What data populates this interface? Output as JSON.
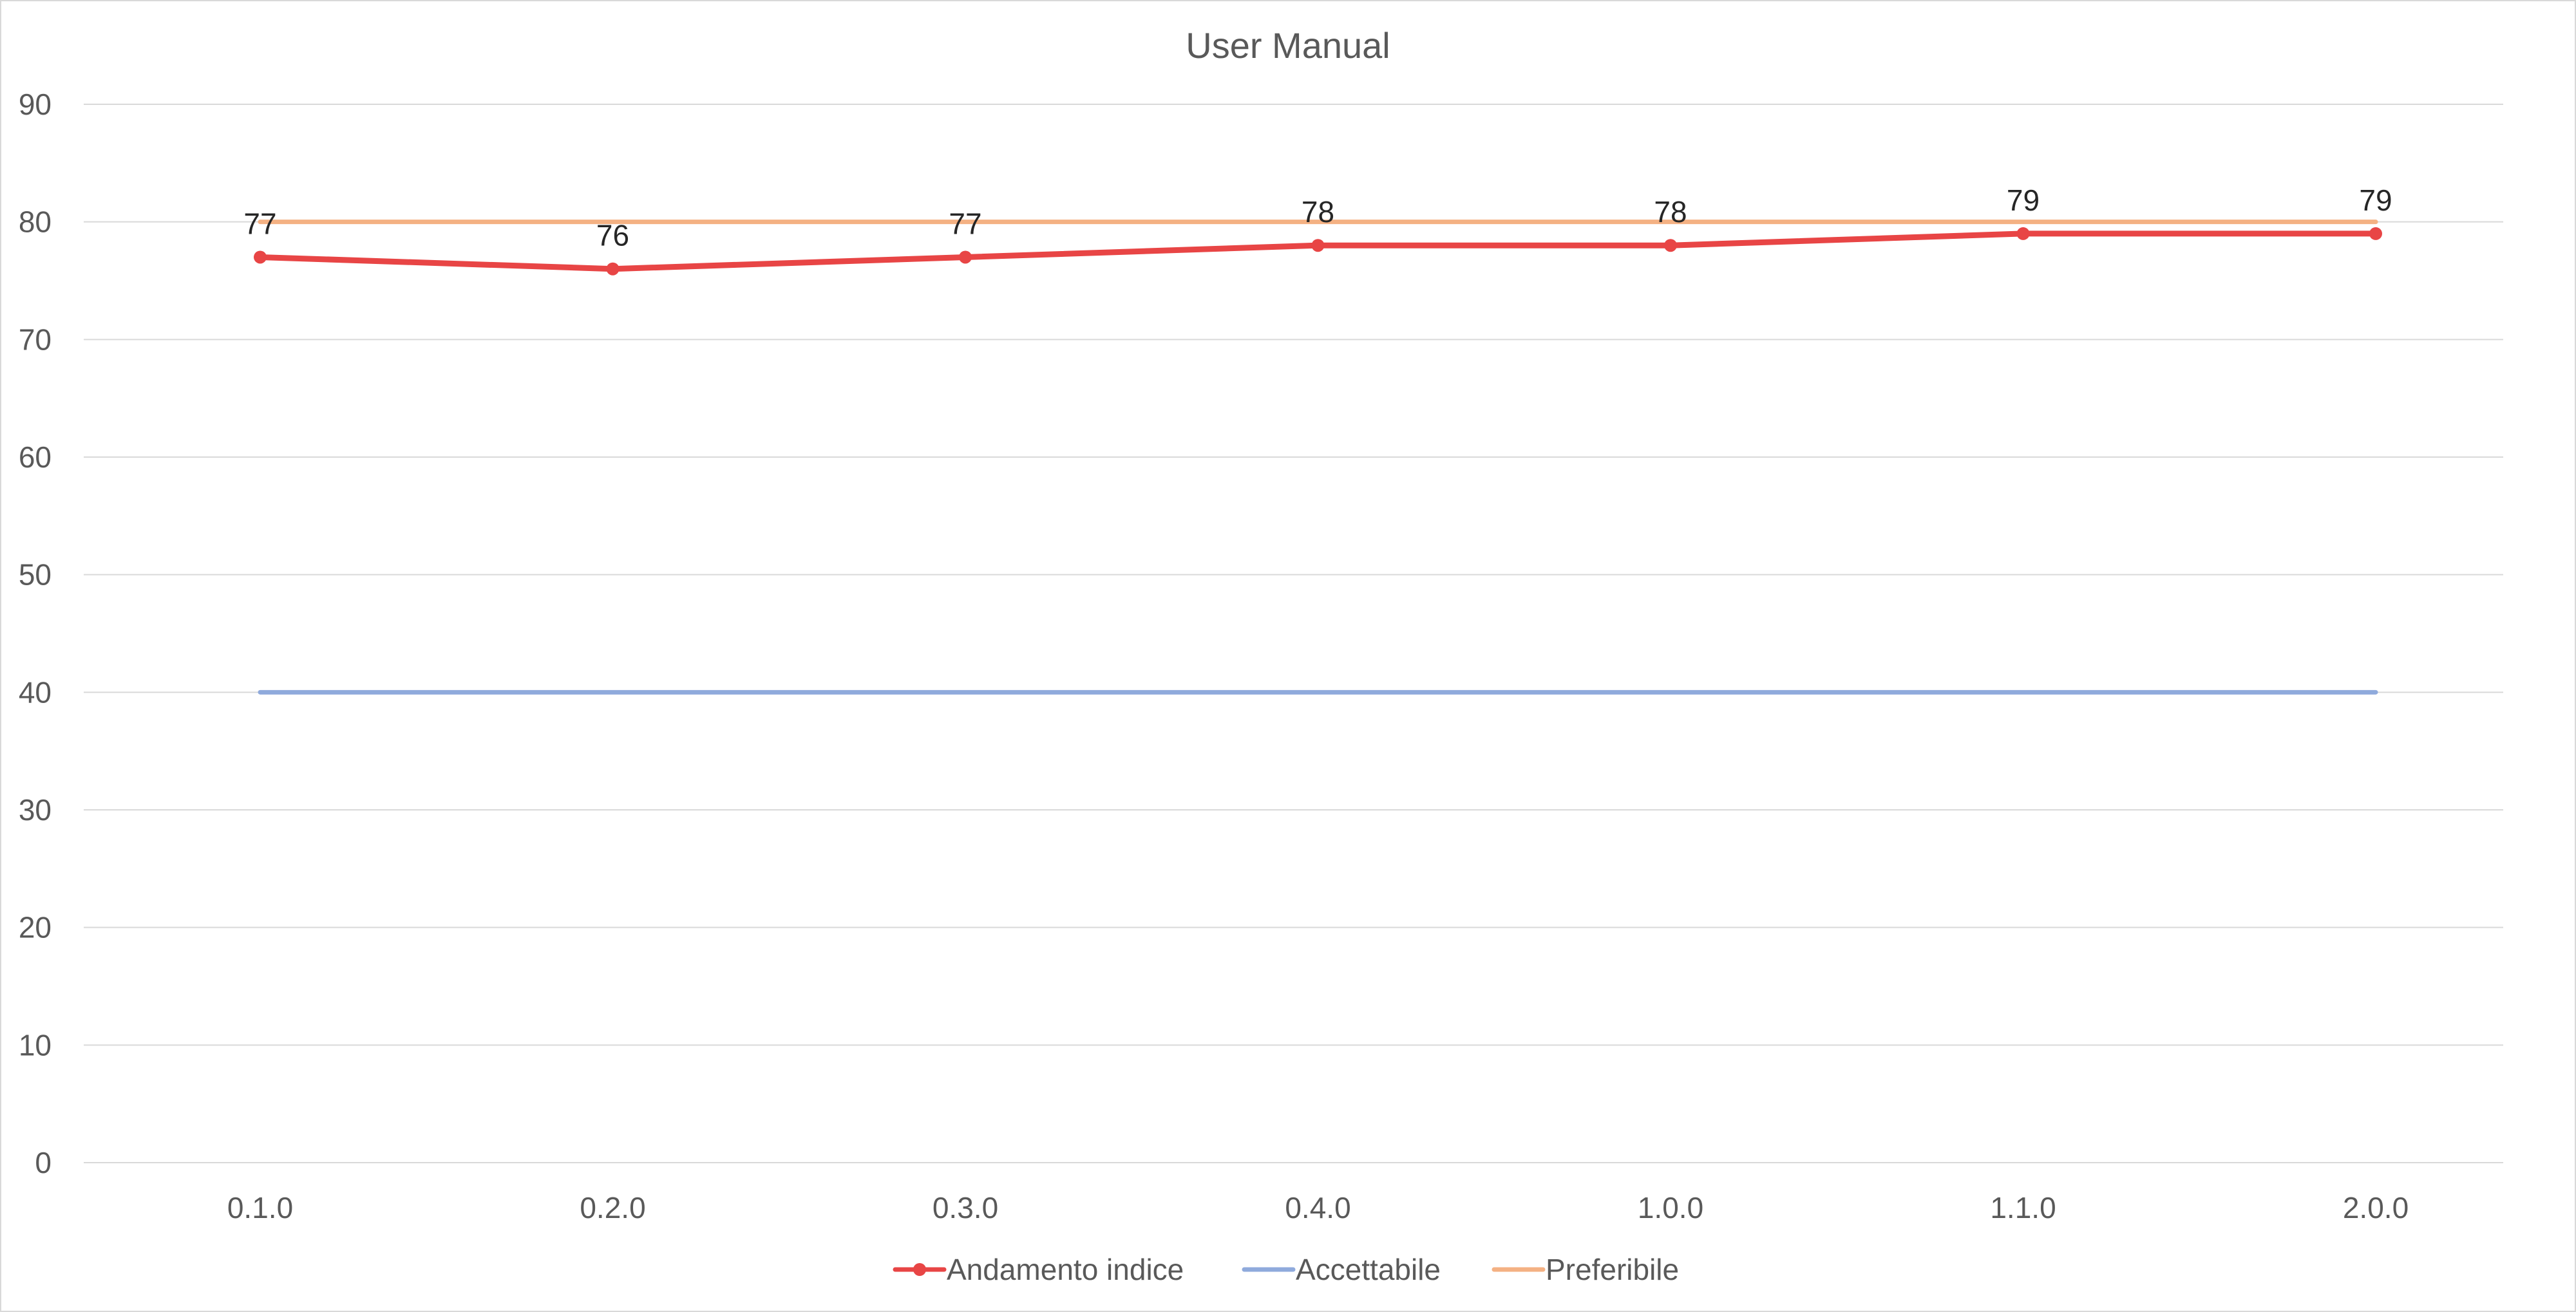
{
  "chart_data": {
    "type": "line",
    "title": "User Manual",
    "xlabel": "",
    "ylabel": "",
    "categories": [
      "0.1.0",
      "0.2.0",
      "0.3.0",
      "0.4.0",
      "1.0.0",
      "1.1.0",
      "2.0.0"
    ],
    "ylim": [
      0,
      90
    ],
    "yticks": [
      0,
      10,
      20,
      30,
      40,
      50,
      60,
      70,
      80,
      90
    ],
    "grid": true,
    "legend_position": "bottom",
    "series": [
      {
        "name": "Andamento indice",
        "values": [
          77,
          76,
          77,
          78,
          78,
          79,
          79
        ],
        "color": "#e84545",
        "markers": true,
        "data_labels": true
      },
      {
        "name": "Accettabile",
        "values": [
          40,
          40,
          40,
          40,
          40,
          40,
          40
        ],
        "color": "#8faadc",
        "markers": false,
        "data_labels": false
      },
      {
        "name": "Preferibile",
        "values": [
          80,
          80,
          80,
          80,
          80,
          80,
          80
        ],
        "color": "#f4b183",
        "markers": false,
        "data_labels": false
      }
    ]
  }
}
